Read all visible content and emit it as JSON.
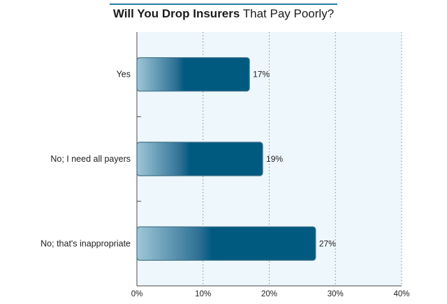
{
  "title_bold": "Will You Drop Insurers",
  "title_rest": " That Pay Poorly?",
  "chart_data": {
    "type": "bar",
    "orientation": "horizontal",
    "categories": [
      "Yes",
      "No; I need all payers",
      "No; that's inappropriate"
    ],
    "values": [
      17,
      19,
      27
    ],
    "value_labels": [
      "17%",
      "19%",
      "27%"
    ],
    "xlim": [
      0,
      40
    ],
    "xticks": [
      0,
      10,
      20,
      30,
      40
    ],
    "xtick_labels": [
      "0%",
      "10%",
      "20%",
      "30%",
      "40%"
    ],
    "grid": true,
    "colors": {
      "bar_dark": "#005a80",
      "bar_light": "#9fc7d8",
      "bar_border": "#3e6f86",
      "plot_bg": "#eef7fb"
    }
  }
}
